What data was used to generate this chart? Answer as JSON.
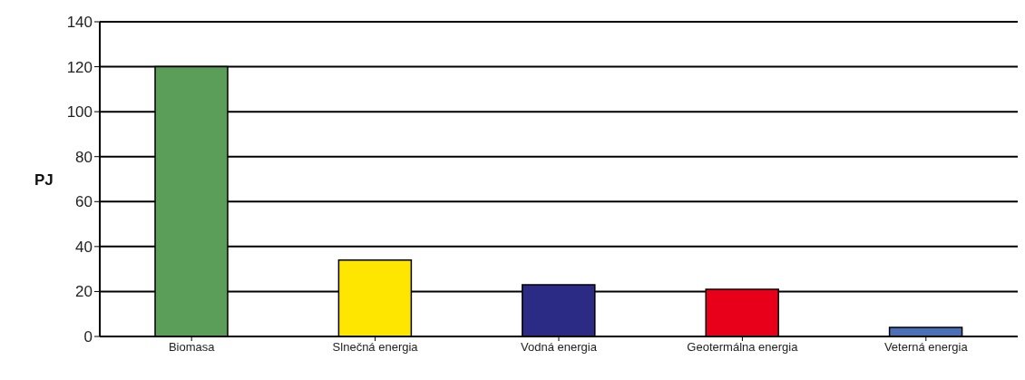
{
  "chart_data": {
    "type": "bar",
    "ylabel": "PJ",
    "categories": [
      "Biomasa",
      "Slnečná energia",
      "Vodná energia",
      "Geotermálna energia",
      "Veterná energia"
    ],
    "values": [
      120,
      34,
      23,
      21,
      4
    ],
    "colors": [
      "#5a9e5a",
      "#ffe600",
      "#2b2a85",
      "#e8001a",
      "#4a6fb5"
    ],
    "ylim": [
      0,
      140
    ],
    "yticks": [
      0,
      20,
      40,
      60,
      80,
      100,
      120,
      140
    ],
    "grid": "y"
  }
}
